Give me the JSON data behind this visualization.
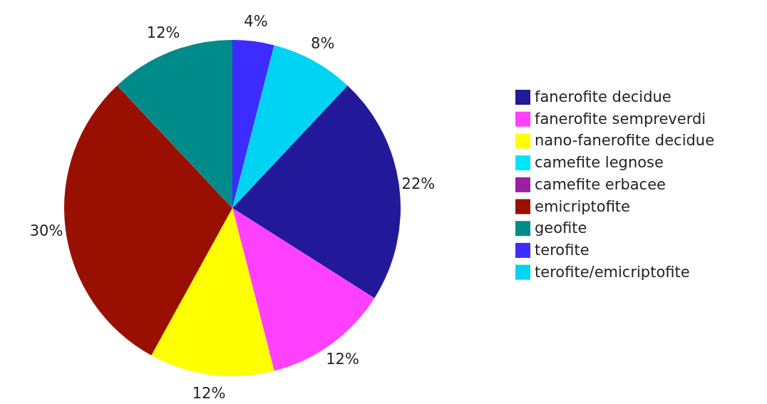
{
  "chart_data": {
    "type": "pie",
    "categories": [
      "fanerofite decidue",
      "fanerofite sempreverdi",
      "nano-fanerofite decidue",
      "camefite legnose",
      "camefite erbacee",
      "emicriptofite",
      "geofite",
      "terofite",
      "terofite/emicriptofite"
    ],
    "values": [
      22,
      12,
      12,
      0,
      0,
      30,
      12,
      4,
      8
    ],
    "colors": [
      "#22189a",
      "#ff40ff",
      "#ffff00",
      "#00e5ff",
      "#9b1fa0",
      "#9a1000",
      "#008b8b",
      "#3d2cff",
      "#00d4f5"
    ],
    "value_labels": [
      "22%",
      "12%",
      "12%",
      null,
      null,
      "30%",
      "12%",
      "4%",
      "8%"
    ],
    "legend": "right"
  }
}
